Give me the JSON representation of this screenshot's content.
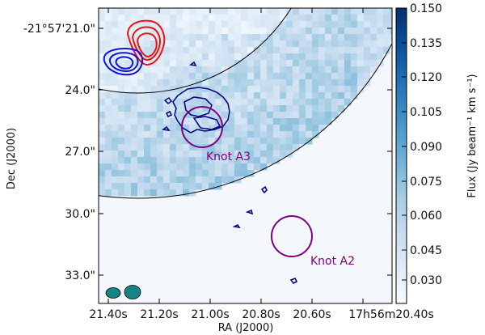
{
  "chart_data": {
    "type": "heatmap",
    "title": "",
    "xlabel": "RA (J2000)",
    "ylabel": "Dec (J2000)",
    "x_ticks": [
      "21.40s",
      "21.20s",
      "21.00s",
      "20.80s",
      "20.60s",
      "17h56m20.40s"
    ],
    "y_ticks": [
      "-21°57'21.0\"",
      "24.0\"",
      "27.0\"",
      "30.0\"",
      "33.0\""
    ],
    "colorbar": {
      "label": "Flux (Jy beam⁻¹ km s⁻¹)",
      "min": 0.022,
      "max": 0.15,
      "ticks": [
        "0.150",
        "0.135",
        "0.120",
        "0.105",
        "0.090",
        "0.075",
        "0.060",
        "0.045",
        "0.030"
      ],
      "colormap": "Blues"
    },
    "annotations": [
      {
        "label": "Knot A3",
        "color": "#800080"
      },
      {
        "label": "Knot A2",
        "color": "#800080"
      }
    ],
    "contour_colors": {
      "red": "#ee1111",
      "blue": "#1111dd",
      "navy": "#0a0a80"
    },
    "beam_color": "#138585"
  }
}
